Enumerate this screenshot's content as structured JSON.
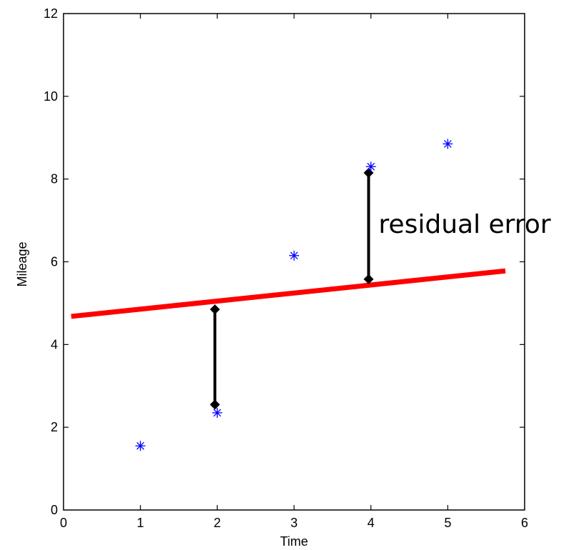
{
  "chart_data": {
    "type": "scatter",
    "title": "",
    "xlabel": "Time",
    "ylabel": "Mileage",
    "xlim": [
      0,
      6
    ],
    "ylim": [
      0,
      12
    ],
    "xticks": [
      "0",
      "1",
      "2",
      "3",
      "4",
      "5",
      "6"
    ],
    "yticks": [
      "0",
      "2",
      "4",
      "6",
      "8",
      "10",
      "12"
    ],
    "grid": false,
    "series": [
      {
        "marker": "asterisk",
        "color": "#0000ff",
        "points": [
          {
            "x": 1,
            "y": 1.55
          },
          {
            "x": 2,
            "y": 2.35
          },
          {
            "x": 3,
            "y": 6.15
          },
          {
            "x": 4,
            "y": 8.3
          },
          {
            "x": 5,
            "y": 8.85
          }
        ]
      }
    ],
    "fit_line": {
      "color": "#ff0000",
      "x": [
        0.1,
        5.75
      ],
      "y": [
        4.68,
        5.78
      ]
    },
    "residuals": [
      {
        "x": 1.97,
        "y1": 2.55,
        "y2": 4.85
      },
      {
        "x": 3.97,
        "y1": 5.58,
        "y2": 8.15
      }
    ],
    "annotation": {
      "text": "residual error",
      "x": 4.1,
      "y": 6.7
    }
  }
}
